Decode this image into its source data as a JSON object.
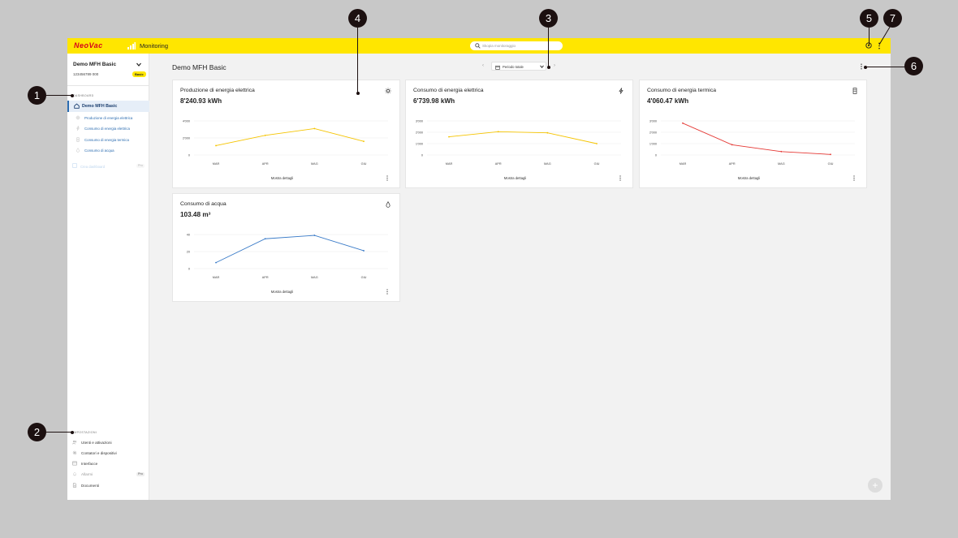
{
  "app": {
    "logo": "NeoVac",
    "module_title": "Monitoring",
    "search_placeholder": "Skopia monitoraggio",
    "brand_yellow": "#ffe600",
    "brand_red": "#d6001c"
  },
  "sidebar": {
    "property_name": "Demo MFH Basic",
    "property_id": "123456789 000",
    "property_badge": "Basic",
    "section_dashboard": "DASHBOARD",
    "active_item": "Demo MFH Basic",
    "sub_items": [
      {
        "label": "Produzione di energia elettrica",
        "icon": "sun-icon"
      },
      {
        "label": "Consumo di energia elettrica",
        "icon": "lightning-icon"
      },
      {
        "label": "Consumo di energia termica",
        "icon": "thermometer-icon"
      },
      {
        "label": "Consumo di acqua",
        "icon": "drop-icon"
      }
    ],
    "disabled_item": {
      "label": "Crea dashboard",
      "badge": "Pro"
    },
    "section_settings": "IMPOSTAZIONI",
    "settings_items": [
      {
        "label": "Utenti e attivazioni",
        "icon": "users-icon"
      },
      {
        "label": "Contatori e dispositivi",
        "icon": "gear-icon"
      },
      {
        "label": "Interfacce",
        "icon": "interface-icon"
      },
      {
        "label": "Allarmi",
        "icon": "bell-icon",
        "badge": "Pro"
      },
      {
        "label": "Documenti",
        "icon": "document-icon"
      }
    ]
  },
  "main": {
    "title": "Demo MFH Basic",
    "period_label": "Periodo totale",
    "fab_symbol": "+"
  },
  "cards": [
    {
      "title": "Produzione di energia elettrica",
      "value": "8'240.93 kWh",
      "icon": "sun-icon",
      "link": "Mostra dettagli",
      "chart_data": {
        "type": "line",
        "categories": [
          "MAR",
          "APR",
          "MAG",
          "GIU"
        ],
        "y_ticks": [
          "4'000",
          "2'000",
          "0"
        ],
        "ylim": [
          0,
          4000
        ],
        "series": [
          {
            "values": [
              1100,
              2300,
              3100,
              1600
            ],
            "color": "#f5c400"
          }
        ]
      }
    },
    {
      "title": "Consumo di energia elettrica",
      "value": "6'739.98 kWh",
      "icon": "lightning-icon",
      "link": "Mostra dettagli",
      "chart_data": {
        "type": "line",
        "categories": [
          "MAR",
          "APR",
          "MAG",
          "GIU"
        ],
        "y_ticks": [
          "3'000",
          "2'000",
          "1'000",
          "0"
        ],
        "ylim": [
          0,
          3000
        ],
        "series": [
          {
            "values": [
              1600,
              2050,
              1950,
              1000
            ],
            "color": "#f5c400"
          }
        ]
      }
    },
    {
      "title": "Consumo di energia termica",
      "value": "4'060.47 kWh",
      "icon": "thermometer-icon",
      "link": "Mostra dettagli",
      "chart_data": {
        "type": "line",
        "categories": [
          "MAR",
          "APR",
          "MAG",
          "GIU"
        ],
        "y_ticks": [
          "3'000",
          "2'000",
          "1'000",
          "0"
        ],
        "ylim": [
          0,
          3000
        ],
        "series": [
          {
            "values": [
              2800,
              900,
              300,
              50
            ],
            "color": "#e53935"
          }
        ]
      }
    },
    {
      "title": "Consumo di acqua",
      "value": "103.48 m³",
      "icon": "drop-icon",
      "link": "Mostra dettagli",
      "chart_data": {
        "type": "line",
        "categories": [
          "MAR",
          "APR",
          "MAG",
          "GIU"
        ],
        "y_ticks": [
          "40",
          "20",
          "0"
        ],
        "ylim": [
          0,
          40
        ],
        "series": [
          {
            "values": [
              7,
              35,
              39,
              21
            ],
            "color": "#3a7bc8"
          }
        ]
      }
    }
  ],
  "callouts": [
    "1",
    "2",
    "3",
    "4",
    "5",
    "6",
    "7"
  ]
}
